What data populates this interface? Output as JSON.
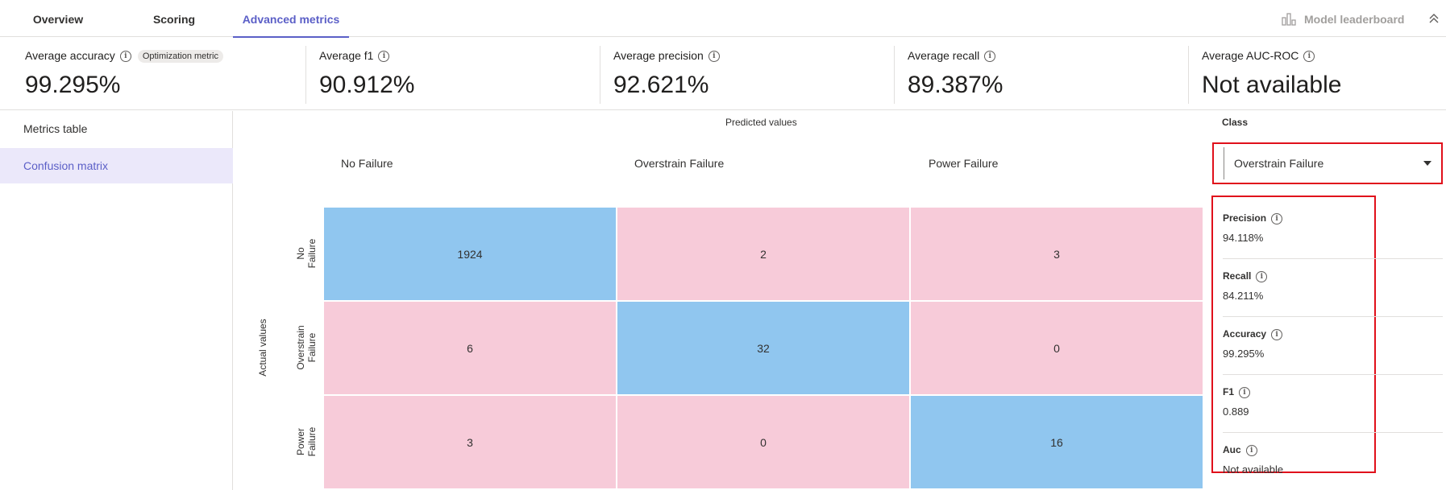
{
  "tabs": [
    {
      "label": "Overview"
    },
    {
      "label": "Scoring"
    },
    {
      "label": "Advanced metrics",
      "active": true
    }
  ],
  "leaderboard_label": "Model leaderboard",
  "summary": [
    {
      "label": "Average accuracy",
      "badge": "Optimization metric",
      "value": "99.295%"
    },
    {
      "label": "Average f1",
      "value": "90.912%"
    },
    {
      "label": "Average precision",
      "value": "92.621%"
    },
    {
      "label": "Average recall",
      "value": "89.387%"
    },
    {
      "label": "Average AUC-ROC",
      "value": "Not available"
    }
  ],
  "nav": [
    {
      "label": "Metrics table"
    },
    {
      "label": "Confusion matrix",
      "active": true
    }
  ],
  "matrix": {
    "predicted_title": "Predicted values",
    "actual_title": "Actual values",
    "columns": [
      "No Failure",
      "Overstrain Failure",
      "Power Failure"
    ],
    "rows": [
      {
        "line1": "No",
        "line2": "Failure"
      },
      {
        "line1": "Overstrain",
        "line2": "Failure"
      },
      {
        "line1": "Power",
        "line2": "Failure"
      }
    ],
    "values": [
      [
        "1924",
        "2",
        "3"
      ],
      [
        "6",
        "32",
        "0"
      ],
      [
        "3",
        "0",
        "16"
      ]
    ],
    "colors": {
      "diagonal": "#90c6ef",
      "off_diagonal": "#f7cbd9"
    }
  },
  "class_panel": {
    "title": "Class",
    "selected": "Overstrain Failure",
    "metrics": [
      {
        "label": "Precision",
        "value": "94.118%"
      },
      {
        "label": "Recall",
        "value": "84.211%"
      },
      {
        "label": "Accuracy",
        "value": "99.295%"
      },
      {
        "label": "F1",
        "value": "0.889"
      },
      {
        "label": "Auc",
        "value": "Not available"
      }
    ]
  },
  "colors": {
    "accent": "#5b5fc7",
    "highlight_border": "#e0101b"
  }
}
